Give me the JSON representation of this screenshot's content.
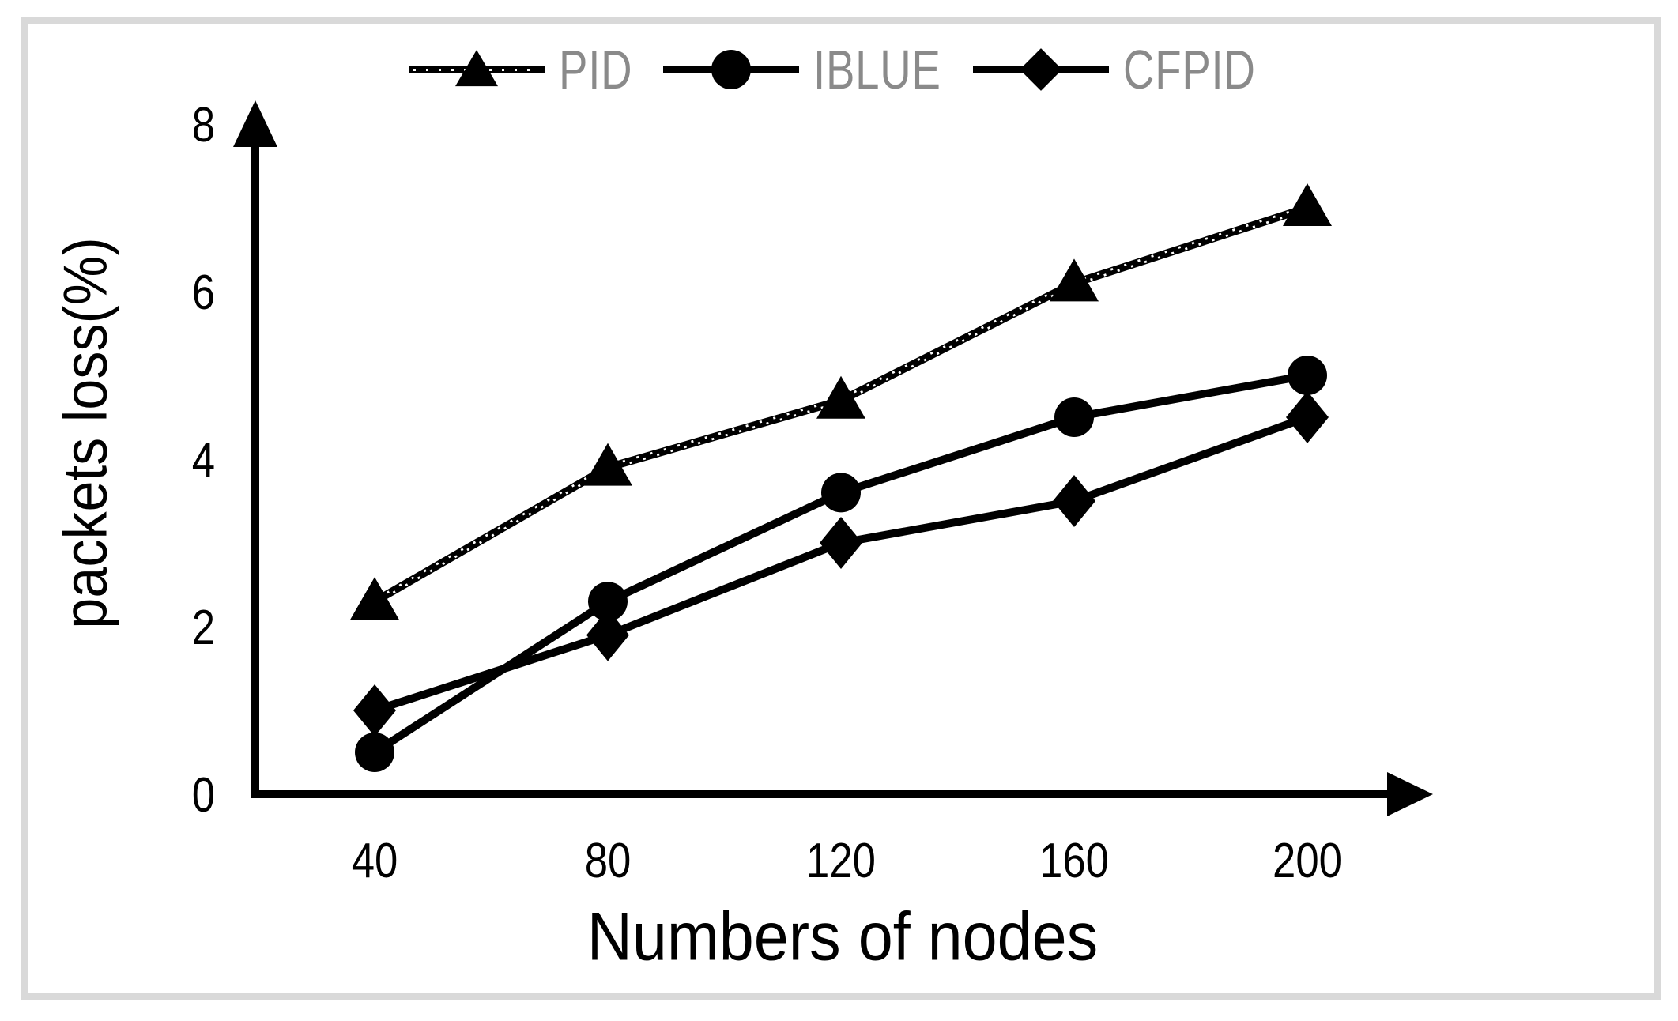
{
  "figure": {
    "background": "#ffffff",
    "frame_color": "#d9d9d9",
    "line_color": "#000000",
    "legend_text_color": "#8a8a8a"
  },
  "legend": {
    "position": "top-center",
    "items": [
      {
        "marker": "triangle-icon",
        "line_style": "thick-black-with-white-dots"
      },
      {
        "marker": "circle-icon",
        "line_style": "solid"
      },
      {
        "marker": "diamond-icon",
        "line_style": "solid"
      }
    ]
  },
  "chart_data": {
    "type": "line",
    "title": "",
    "xlabel": "Numbers of nodes",
    "ylabel": "packets loss(%)",
    "categories": [
      40,
      80,
      120,
      160,
      200
    ],
    "y_ticks": [
      0,
      2,
      4,
      6,
      8
    ],
    "ylim": [
      0,
      8
    ],
    "grid": false,
    "legend_position": "top-center",
    "series": [
      {
        "name": "PID",
        "marker": "triangle",
        "line": "dotted-thick",
        "color": "#000000",
        "values": [
          2.3,
          3.9,
          4.7,
          6.1,
          7.0
        ]
      },
      {
        "name": "IBLUE",
        "marker": "circle",
        "line": "solid",
        "color": "#000000",
        "values": [
          0.5,
          2.3,
          3.6,
          4.5,
          5.0
        ]
      },
      {
        "name": "CFPID",
        "marker": "diamond",
        "line": "solid",
        "color": "#000000",
        "values": [
          1.0,
          1.9,
          3.0,
          3.5,
          4.5
        ]
      }
    ]
  }
}
